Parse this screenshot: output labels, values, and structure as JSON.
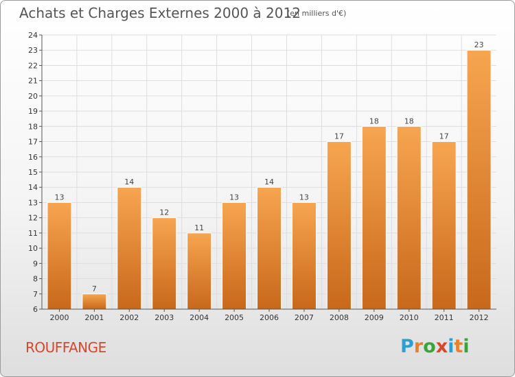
{
  "title": "Achats et Charges Externes 2000 à 2012",
  "subtitle": "(en milliers d'€)",
  "place_name": "ROUFFANGE",
  "logo": {
    "text": "Proxiti",
    "letters": [
      "P",
      "r",
      "o",
      "x",
      "i",
      "t",
      "i"
    ],
    "colors": [
      "#2a9fd6",
      "#e8822a",
      "#3aa33a",
      "#d9472b",
      "#2a9fd6",
      "#e8822a",
      "#3aa33a"
    ]
  },
  "chart_data": {
    "type": "bar",
    "categories": [
      "2000",
      "2001",
      "2002",
      "2003",
      "2004",
      "2005",
      "2006",
      "2007",
      "2008",
      "2009",
      "2010",
      "2011",
      "2012"
    ],
    "values": [
      13,
      7,
      14,
      12,
      11,
      13,
      14,
      13,
      17,
      18,
      18,
      17,
      23
    ],
    "data_labels": [
      "13",
      "7",
      "14",
      "12",
      "11",
      "13",
      "14",
      "13",
      "17",
      "18",
      "18",
      "17",
      "23"
    ],
    "ylim": [
      6,
      24
    ],
    "yticks": [
      6,
      7,
      8,
      9,
      10,
      11,
      12,
      13,
      14,
      15,
      16,
      17,
      18,
      19,
      20,
      21,
      22,
      23,
      24
    ],
    "ytick_labels": [
      "6",
      "7",
      "8",
      "9",
      "10",
      "11",
      "12",
      "13",
      "14",
      "15",
      "16",
      "17",
      "18",
      "19",
      "20",
      "21",
      "22",
      "23",
      "24"
    ],
    "grid": true,
    "bar_color_top": "#f7a550",
    "bar_color_bottom": "#c8681a"
  }
}
